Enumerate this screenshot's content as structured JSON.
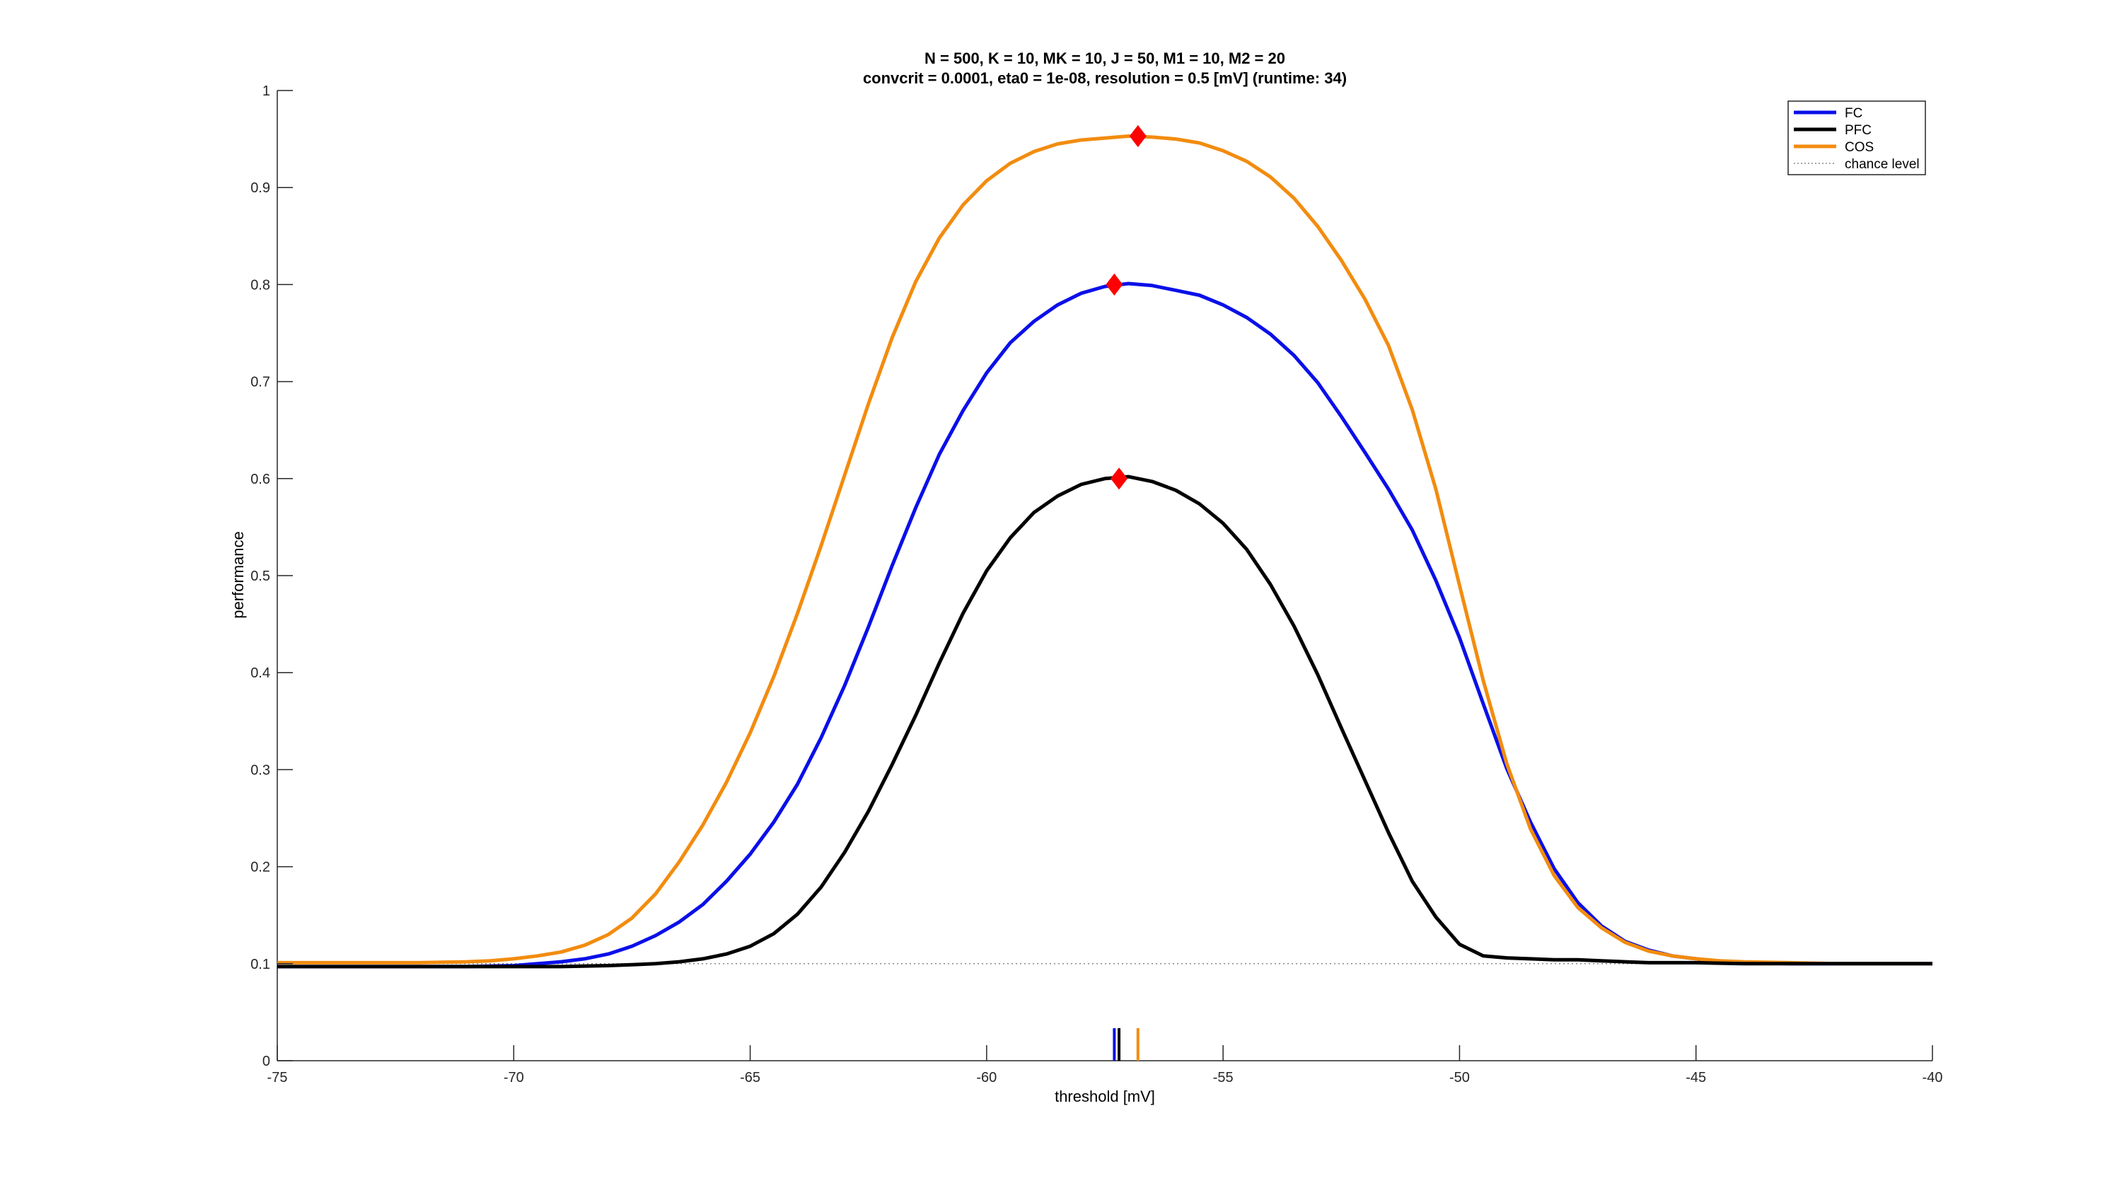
{
  "chart_data": {
    "type": "line",
    "title": [
      "N = 500, K = 10, MK = 10, J = 50, M1 = 10, M2 = 20",
      "convcrit = 0.0001, eta0 = 1e-08, resolution = 0.5 [mV] (runtime: 34)"
    ],
    "xlabel": "threshold [mV]",
    "ylabel": "performance",
    "xlim": [
      -75,
      -40
    ],
    "ylim": [
      0,
      1
    ],
    "xticks": [
      -75,
      -70,
      -65,
      -60,
      -55,
      -50,
      -45,
      -40
    ],
    "yticks": [
      0,
      0.1,
      0.2,
      0.3,
      0.4,
      0.5,
      0.6,
      0.7,
      0.8,
      0.9,
      1
    ],
    "ytick_labels": [
      "0",
      "0.1",
      "0.2",
      "0.3",
      "0.4",
      "0.5",
      "0.6",
      "0.7",
      "0.8",
      "0.9",
      "1"
    ],
    "grid": false,
    "legend_position": "top-right",
    "legend": [
      "FC",
      "PFC",
      "COS",
      "chance level"
    ],
    "chance_level": 0.1,
    "chance_color": "#888888",
    "series": [
      {
        "name": "FC",
        "color": "#0a10e8",
        "peak": {
          "x": -57.3,
          "y": 0.8
        },
        "points": [
          [
            -75,
            0.097
          ],
          [
            -74,
            0.097
          ],
          [
            -73,
            0.097
          ],
          [
            -72,
            0.097
          ],
          [
            -71,
            0.097
          ],
          [
            -70,
            0.098
          ],
          [
            -69.5,
            0.1
          ],
          [
            -69,
            0.102
          ],
          [
            -68.5,
            0.105
          ],
          [
            -68,
            0.11
          ],
          [
            -67.5,
            0.118
          ],
          [
            -67,
            0.129
          ],
          [
            -66.5,
            0.143
          ],
          [
            -66,
            0.161
          ],
          [
            -65.5,
            0.185
          ],
          [
            -65,
            0.213
          ],
          [
            -64.5,
            0.246
          ],
          [
            -64,
            0.285
          ],
          [
            -63.5,
            0.333
          ],
          [
            -63,
            0.387
          ],
          [
            -62.5,
            0.447
          ],
          [
            -62,
            0.51
          ],
          [
            -61.5,
            0.57
          ],
          [
            -61,
            0.625
          ],
          [
            -60.5,
            0.67
          ],
          [
            -60,
            0.709
          ],
          [
            -59.5,
            0.74
          ],
          [
            -59,
            0.762
          ],
          [
            -58.5,
            0.779
          ],
          [
            -58,
            0.791
          ],
          [
            -57.5,
            0.798
          ],
          [
            -57,
            0.801
          ],
          [
            -56.5,
            0.799
          ],
          [
            -56,
            0.794
          ],
          [
            -55.5,
            0.789
          ],
          [
            -55,
            0.779
          ],
          [
            -54.5,
            0.766
          ],
          [
            -54,
            0.749
          ],
          [
            -53.5,
            0.727
          ],
          [
            -53,
            0.699
          ],
          [
            -52.5,
            0.664
          ],
          [
            -52,
            0.627
          ],
          [
            -51.5,
            0.589
          ],
          [
            -51,
            0.547
          ],
          [
            -50.5,
            0.495
          ],
          [
            -50,
            0.436
          ],
          [
            -49.5,
            0.368
          ],
          [
            -49,
            0.301
          ],
          [
            -48.5,
            0.246
          ],
          [
            -48,
            0.198
          ],
          [
            -47.5,
            0.163
          ],
          [
            -47,
            0.139
          ],
          [
            -46.5,
            0.123
          ],
          [
            -46,
            0.114
          ],
          [
            -45.5,
            0.108
          ],
          [
            -45,
            0.105
          ],
          [
            -44.5,
            0.102
          ],
          [
            -44,
            0.101
          ],
          [
            -43,
            0.1
          ],
          [
            -42,
            0.1
          ],
          [
            -41,
            0.1
          ],
          [
            -40,
            0.1
          ]
        ]
      },
      {
        "name": "PFC",
        "color": "#000000",
        "peak": {
          "x": -57.2,
          "y": 0.6
        },
        "points": [
          [
            -75,
            0.097
          ],
          [
            -74,
            0.097
          ],
          [
            -73,
            0.097
          ],
          [
            -72,
            0.097
          ],
          [
            -71,
            0.097
          ],
          [
            -70,
            0.097
          ],
          [
            -69,
            0.097
          ],
          [
            -68,
            0.098
          ],
          [
            -67.5,
            0.099
          ],
          [
            -67,
            0.1
          ],
          [
            -66.5,
            0.102
          ],
          [
            -66,
            0.105
          ],
          [
            -65.5,
            0.11
          ],
          [
            -65,
            0.118
          ],
          [
            -64.5,
            0.131
          ],
          [
            -64,
            0.151
          ],
          [
            -63.5,
            0.179
          ],
          [
            -63,
            0.215
          ],
          [
            -62.5,
            0.257
          ],
          [
            -62,
            0.305
          ],
          [
            -61.5,
            0.356
          ],
          [
            -61,
            0.41
          ],
          [
            -60.5,
            0.461
          ],
          [
            -60,
            0.505
          ],
          [
            -59.5,
            0.539
          ],
          [
            -59,
            0.565
          ],
          [
            -58.5,
            0.582
          ],
          [
            -58,
            0.594
          ],
          [
            -57.5,
            0.6
          ],
          [
            -57,
            0.602
          ],
          [
            -56.5,
            0.597
          ],
          [
            -56,
            0.588
          ],
          [
            -55.5,
            0.574
          ],
          [
            -55,
            0.554
          ],
          [
            -54.5,
            0.527
          ],
          [
            -54,
            0.491
          ],
          [
            -53.5,
            0.448
          ],
          [
            -53,
            0.398
          ],
          [
            -52.5,
            0.343
          ],
          [
            -52,
            0.289
          ],
          [
            -51.5,
            0.235
          ],
          [
            -51,
            0.185
          ],
          [
            -50.5,
            0.148
          ],
          [
            -50,
            0.12
          ],
          [
            -49.5,
            0.108
          ],
          [
            -49,
            0.106
          ],
          [
            -48.5,
            0.105
          ],
          [
            -48,
            0.104
          ],
          [
            -47.5,
            0.104
          ],
          [
            -47,
            0.103
          ],
          [
            -46.5,
            0.102
          ],
          [
            -46,
            0.101
          ],
          [
            -45,
            0.101
          ],
          [
            -44,
            0.1
          ],
          [
            -43,
            0.1
          ],
          [
            -42,
            0.1
          ],
          [
            -41,
            0.1
          ],
          [
            -40,
            0.1
          ]
        ]
      },
      {
        "name": "COS",
        "color": "#f28c0f",
        "peak": {
          "x": -56.8,
          "y": 0.953
        },
        "points": [
          [
            -75,
            0.101
          ],
          [
            -74,
            0.101
          ],
          [
            -73,
            0.101
          ],
          [
            -72,
            0.101
          ],
          [
            -71,
            0.102
          ],
          [
            -70.5,
            0.103
          ],
          [
            -70,
            0.105
          ],
          [
            -69.5,
            0.108
          ],
          [
            -69,
            0.112
          ],
          [
            -68.5,
            0.119
          ],
          [
            -68,
            0.13
          ],
          [
            -67.5,
            0.147
          ],
          [
            -67,
            0.172
          ],
          [
            -66.5,
            0.205
          ],
          [
            -66,
            0.243
          ],
          [
            -65.5,
            0.287
          ],
          [
            -65,
            0.338
          ],
          [
            -64.5,
            0.396
          ],
          [
            -64,
            0.461
          ],
          [
            -63.5,
            0.531
          ],
          [
            -63,
            0.604
          ],
          [
            -62.5,
            0.677
          ],
          [
            -62,
            0.745
          ],
          [
            -61.5,
            0.803
          ],
          [
            -61,
            0.848
          ],
          [
            -60.5,
            0.882
          ],
          [
            -60,
            0.907
          ],
          [
            -59.5,
            0.925
          ],
          [
            -59,
            0.937
          ],
          [
            -58.5,
            0.945
          ],
          [
            -58,
            0.949
          ],
          [
            -57.5,
            0.951
          ],
          [
            -57,
            0.953
          ],
          [
            -56.5,
            0.952
          ],
          [
            -56,
            0.95
          ],
          [
            -55.5,
            0.946
          ],
          [
            -55,
            0.938
          ],
          [
            -54.5,
            0.927
          ],
          [
            -54,
            0.911
          ],
          [
            -53.5,
            0.889
          ],
          [
            -53,
            0.86
          ],
          [
            -52.5,
            0.825
          ],
          [
            -52,
            0.785
          ],
          [
            -51.5,
            0.737
          ],
          [
            -51,
            0.671
          ],
          [
            -50.5,
            0.589
          ],
          [
            -50,
            0.49
          ],
          [
            -49.5,
            0.392
          ],
          [
            -49,
            0.306
          ],
          [
            -48.5,
            0.239
          ],
          [
            -48,
            0.191
          ],
          [
            -47.5,
            0.158
          ],
          [
            -47,
            0.137
          ],
          [
            -46.5,
            0.122
          ],
          [
            -46,
            0.113
          ],
          [
            -45.5,
            0.108
          ],
          [
            -45,
            0.105
          ],
          [
            -44.5,
            0.103
          ],
          [
            -44,
            0.102
          ],
          [
            -43,
            0.101
          ],
          [
            -42,
            0.1
          ],
          [
            -41,
            0.1
          ],
          [
            -40,
            0.1
          ]
        ]
      }
    ],
    "peak_marker_color": "#ff0000"
  }
}
